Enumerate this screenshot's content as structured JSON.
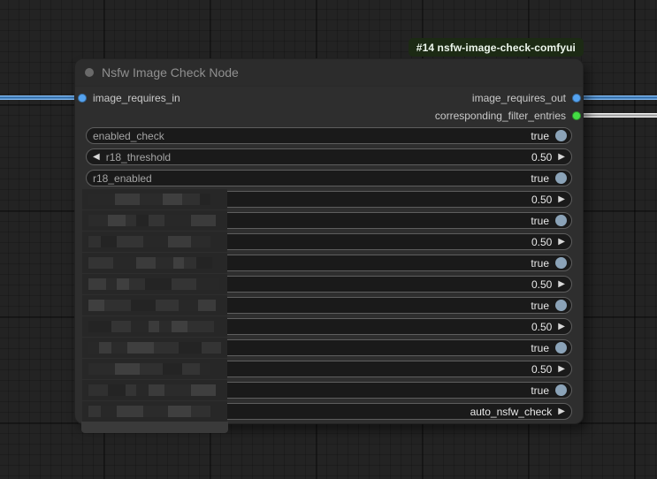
{
  "badge": {
    "text": "#14 nsfw-image-check-comfyui"
  },
  "node": {
    "title": "Nsfw Image Check Node",
    "inputs": [
      {
        "name": "image_requires_in",
        "type_color": "#55a3f0"
      }
    ],
    "outputs": [
      {
        "name": "image_requires_out",
        "type_color": "#55a3f0"
      },
      {
        "name": "corresponding_filter_entries",
        "type_color": "#44dd44"
      }
    ],
    "widgets": [
      {
        "type": "toggle",
        "label": "enabled_check",
        "value": "true",
        "blurred": false
      },
      {
        "type": "number",
        "label": "r18_threshold",
        "value": "0.50",
        "blurred": false
      },
      {
        "type": "toggle",
        "label": "r18_enabled",
        "value": "true",
        "blurred": false
      },
      {
        "type": "number",
        "label": "",
        "value": "0.50",
        "blurred": true
      },
      {
        "type": "toggle",
        "label": "",
        "value": "true",
        "blurred": true
      },
      {
        "type": "number",
        "label": "",
        "value": "0.50",
        "blurred": true
      },
      {
        "type": "toggle",
        "label": "",
        "value": "true",
        "blurred": true
      },
      {
        "type": "number",
        "label": "",
        "value": "0.50",
        "blurred": true
      },
      {
        "type": "toggle",
        "label": "",
        "value": "true",
        "blurred": true
      },
      {
        "type": "number",
        "label": "",
        "value": "0.50",
        "blurred": true
      },
      {
        "type": "toggle",
        "label": "",
        "value": "true",
        "blurred": true
      },
      {
        "type": "number",
        "label": "",
        "value": "0.50",
        "blurred": true
      },
      {
        "type": "toggle",
        "label": "",
        "value": "true",
        "blurred": true
      },
      {
        "type": "combo",
        "label": "",
        "value": "auto_nsfw_check",
        "blurred": true
      }
    ]
  },
  "colors": {
    "link_blue": "#55a3f0",
    "link_white": "#ececec",
    "slot_green": "#44dd44",
    "toggle_on": "#8ba3b8",
    "badge_bg": "#1c2a14",
    "badge_text": "#edf6ed"
  }
}
